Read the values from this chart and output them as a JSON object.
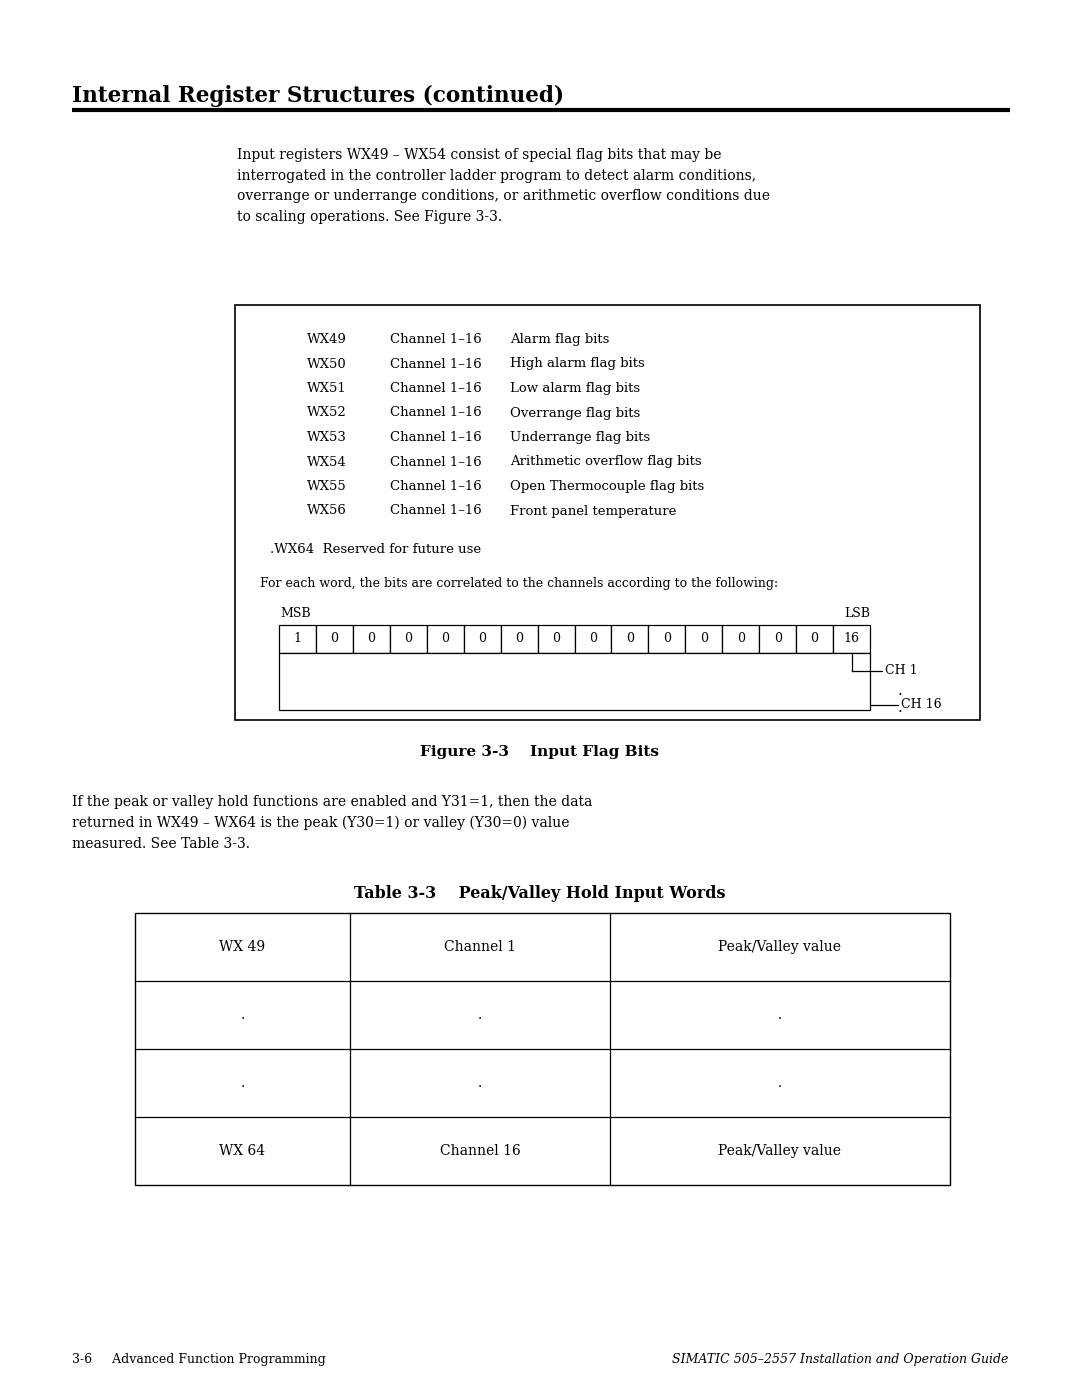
{
  "page_bg": "#ffffff",
  "heading": "Internal Register Structures (continued)",
  "intro_text": "Input registers WX49 – WX54 consist of special flag bits that may be\ninterrogated in the controller ladder program to detect alarm conditions,\noverrange or underrange conditions, or arithmetic overflow conditions due\nto scaling operations. See Figure 3-3.",
  "register_table": [
    [
      "WX49",
      "Channel 1–16",
      "Alarm flag bits"
    ],
    [
      "WX50",
      "Channel 1–16",
      "High alarm flag bits"
    ],
    [
      "WX51",
      "Channel 1–16",
      "Low alarm flag bits"
    ],
    [
      "WX52",
      "Channel 1–16",
      "Overrange flag bits"
    ],
    [
      "WX53",
      "Channel 1–16",
      "Underrange flag bits"
    ],
    [
      "WX54",
      "Channel 1–16",
      "Arithmetic overflow flag bits"
    ],
    [
      "WX55",
      "Channel 1–16",
      "Open Thermocouple flag bits"
    ],
    [
      "WX56",
      "Channel 1–16",
      "Front panel temperature"
    ]
  ],
  "reserved_text": ".WX64  Reserved for future use",
  "for_each_text": "For each word, the bits are correlated to the channels according to the following:",
  "bit_values": [
    "1",
    "0",
    "0",
    "0",
    "0",
    "0",
    "0",
    "0",
    "0",
    "0",
    "0",
    "0",
    "0",
    "0",
    "0",
    "16"
  ],
  "msb_label": "MSB",
  "lsb_label": "LSB",
  "ch1_label": "CH 1",
  "ch16_label": "CH 16",
  "figure_caption": "Figure 3-3    Input Flag Bits",
  "peak_valley_intro": "If the peak or valley hold functions are enabled and Y31=1, then the data\nreturned in WX49 – WX64 is the peak (Y30=1) or valley (Y30=0) value\nmeasured. See Table 3-3.",
  "table_title": "Table 3-3    Peak/Valley Hold Input Words",
  "table_rows": [
    [
      "WX 49",
      "Channel 1",
      "Peak/Valley value"
    ],
    [
      ".",
      ".",
      "."
    ],
    [
      ".",
      ".",
      "."
    ],
    [
      "WX 64",
      "Channel 16",
      "Peak/Valley value"
    ]
  ],
  "footer_left": "3-6     Advanced Function Programming",
  "footer_right": "SIMATIC 505–2557 Installation and Operation Guide"
}
